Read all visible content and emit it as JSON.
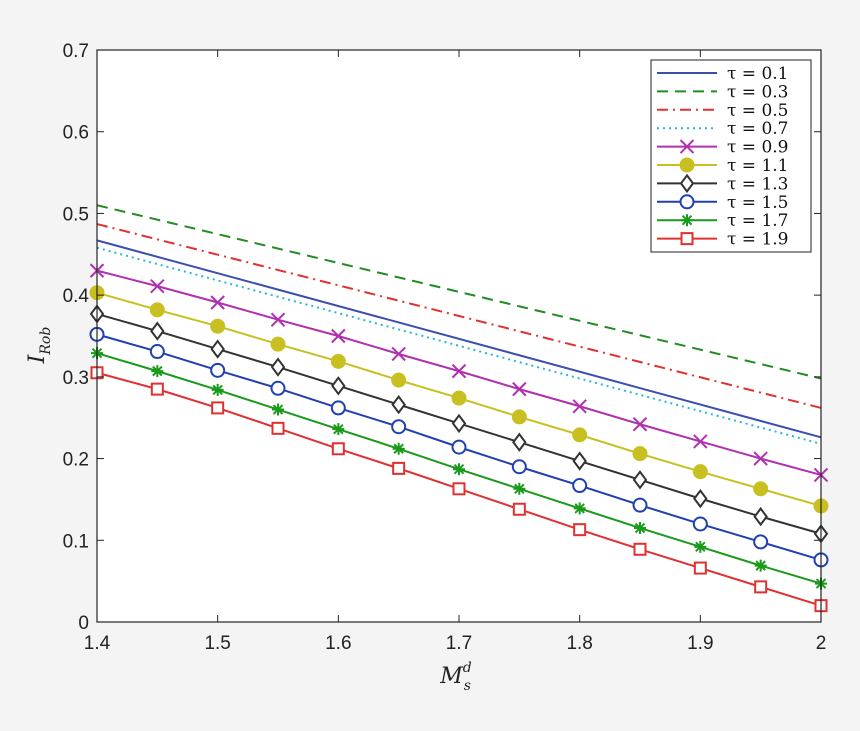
{
  "chart_data": {
    "type": "line",
    "title": "",
    "xlabel": "M",
    "xlabel_sup": "d",
    "xlabel_sub": "s",
    "ylabel": "I",
    "ylabel_sub": "Rob",
    "xlim": [
      1.4,
      2.0
    ],
    "ylim": [
      0,
      0.7
    ],
    "x_ticks": [
      "1.4",
      "1.5",
      "1.6",
      "1.7",
      "1.8",
      "1.9",
      "2"
    ],
    "y_ticks": [
      "0",
      "0.1",
      "0.2",
      "0.3",
      "0.4",
      "0.5",
      "0.6",
      "0.7"
    ],
    "x_tick_values": [
      1.4,
      1.5,
      1.6,
      1.7,
      1.8,
      1.9,
      2.0
    ],
    "y_tick_values": [
      0,
      0.1,
      0.2,
      0.3,
      0.4,
      0.5,
      0.6,
      0.7
    ],
    "grid": false,
    "legend_position": "top-right",
    "series": [
      {
        "name": "τ = 0.1",
        "color": "#3a4fb0",
        "style": "solid",
        "marker": "none",
        "x": [
          1.4,
          2.0
        ],
        "y": [
          0.467,
          0.226
        ]
      },
      {
        "name": "τ = 0.3",
        "color": "#228b22",
        "style": "dashed",
        "marker": "none",
        "x": [
          1.4,
          2.0
        ],
        "y": [
          0.51,
          0.298
        ]
      },
      {
        "name": "τ = 0.5",
        "color": "#e03030",
        "style": "dashdot",
        "marker": "none",
        "x": [
          1.4,
          2.0
        ],
        "y": [
          0.487,
          0.262
        ]
      },
      {
        "name": "τ = 0.7",
        "color": "#26b8d6",
        "style": "dotted",
        "marker": "none",
        "x": [
          1.4,
          2.0
        ],
        "y": [
          0.458,
          0.218
        ]
      },
      {
        "name": "τ = 0.9",
        "color": "#b030b0",
        "style": "solid",
        "marker": "x",
        "x": [
          1.4,
          1.45,
          1.5,
          1.55,
          1.6,
          1.65,
          1.7,
          1.75,
          1.8,
          1.85,
          1.9,
          1.95,
          2.0
        ],
        "y": [
          0.43,
          0.411,
          0.391,
          0.37,
          0.35,
          0.328,
          0.307,
          0.285,
          0.264,
          0.242,
          0.221,
          0.2,
          0.18
        ]
      },
      {
        "name": "τ = 1.1",
        "color": "#c8c020",
        "style": "solid",
        "marker": "filled-circle",
        "x": [
          1.4,
          1.45,
          1.5,
          1.55,
          1.6,
          1.65,
          1.7,
          1.75,
          1.8,
          1.85,
          1.9,
          1.95,
          2.0
        ],
        "y": [
          0.403,
          0.382,
          0.362,
          0.34,
          0.319,
          0.296,
          0.274,
          0.251,
          0.229,
          0.206,
          0.184,
          0.163,
          0.142
        ]
      },
      {
        "name": "τ = 1.3",
        "color": "#333333",
        "style": "solid",
        "marker": "diamond",
        "x": [
          1.4,
          1.45,
          1.5,
          1.55,
          1.6,
          1.65,
          1.7,
          1.75,
          1.8,
          1.85,
          1.9,
          1.95,
          2.0
        ],
        "y": [
          0.377,
          0.356,
          0.334,
          0.312,
          0.289,
          0.266,
          0.243,
          0.22,
          0.197,
          0.174,
          0.151,
          0.129,
          0.108
        ]
      },
      {
        "name": "τ = 1.5",
        "color": "#2040b0",
        "style": "solid",
        "marker": "circle",
        "x": [
          1.4,
          1.45,
          1.5,
          1.55,
          1.6,
          1.65,
          1.7,
          1.75,
          1.8,
          1.85,
          1.9,
          1.95,
          2.0
        ],
        "y": [
          0.352,
          0.331,
          0.308,
          0.286,
          0.262,
          0.239,
          0.214,
          0.19,
          0.167,
          0.143,
          0.12,
          0.098,
          0.076
        ]
      },
      {
        "name": "τ = 1.7",
        "color": "#1a9a1a",
        "style": "solid",
        "marker": "star",
        "x": [
          1.4,
          1.45,
          1.5,
          1.55,
          1.6,
          1.65,
          1.7,
          1.75,
          1.8,
          1.85,
          1.9,
          1.95,
          2.0
        ],
        "y": [
          0.329,
          0.307,
          0.284,
          0.26,
          0.236,
          0.212,
          0.187,
          0.163,
          0.139,
          0.115,
          0.092,
          0.069,
          0.047
        ]
      },
      {
        "name": "τ = 1.9",
        "color": "#e03030",
        "style": "solid",
        "marker": "square",
        "x": [
          1.4,
          1.45,
          1.5,
          1.55,
          1.6,
          1.65,
          1.7,
          1.75,
          1.8,
          1.85,
          1.9,
          1.95,
          2.0
        ],
        "y": [
          0.305,
          0.285,
          0.262,
          0.237,
          0.212,
          0.188,
          0.163,
          0.138,
          0.113,
          0.089,
          0.066,
          0.043,
          0.02
        ]
      }
    ]
  }
}
